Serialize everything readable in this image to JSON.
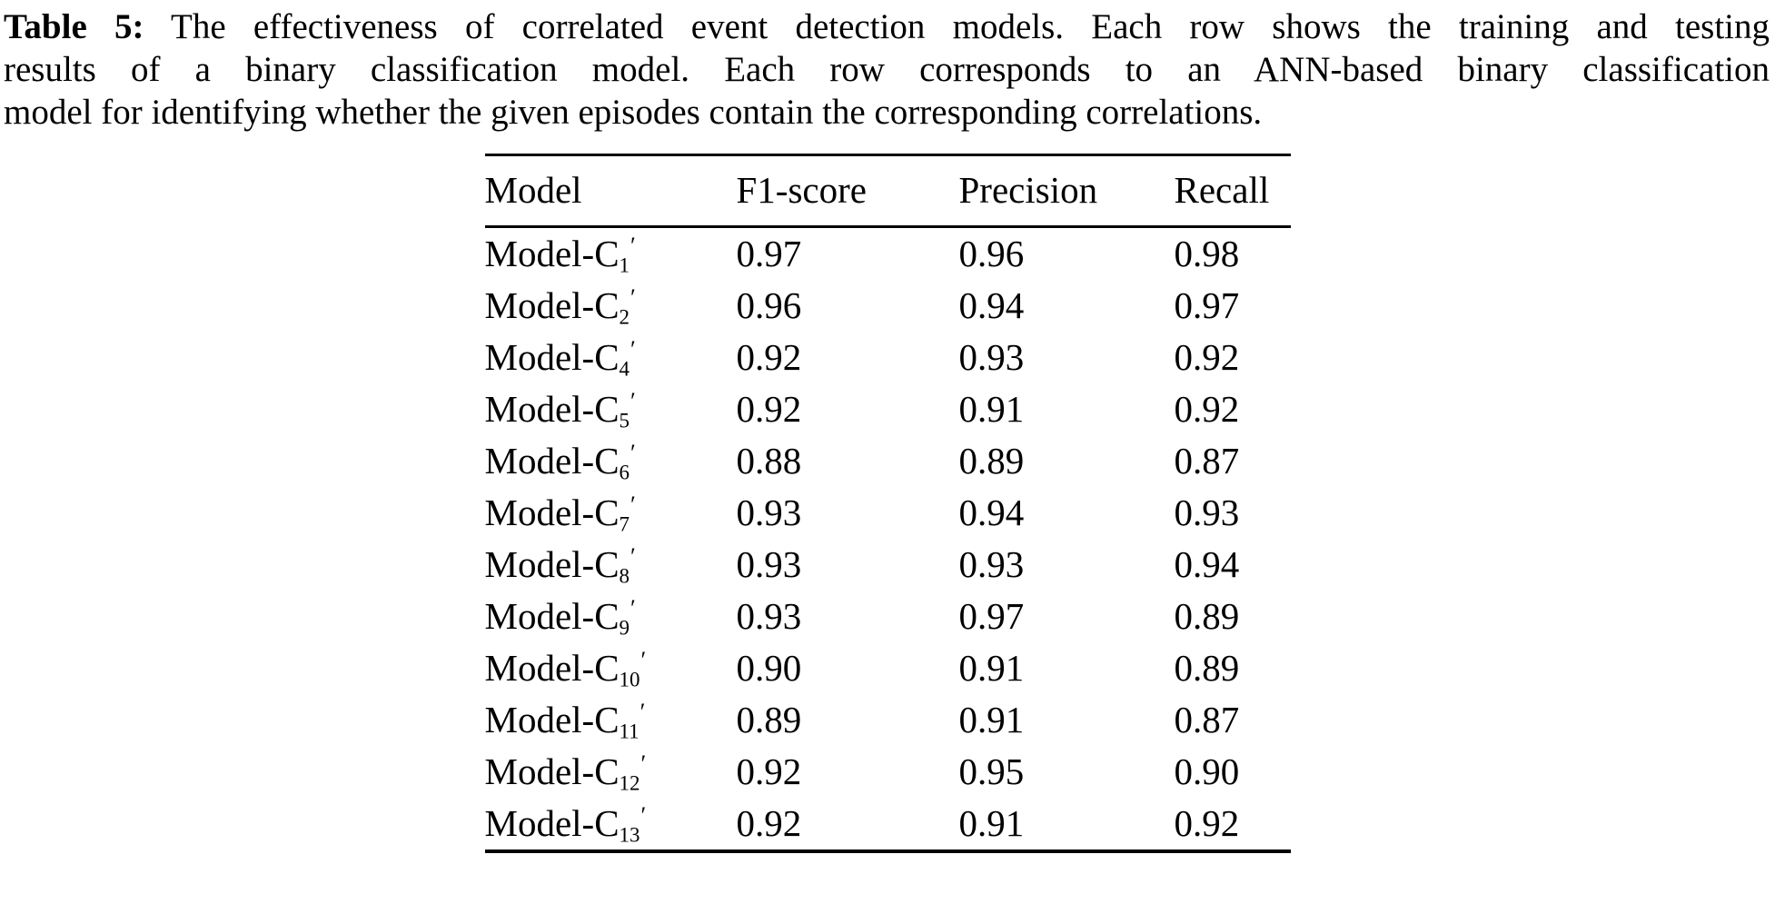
{
  "caption": {
    "label": "Table 5:",
    "lines": [
      "The effectiveness of correlated event detection models. Each row shows the training and testing",
      "results of a binary classification model. Each row corresponds to an ANN-based binary classification",
      "model for identifying whether the given episodes contain the corresponding correlations."
    ]
  },
  "table": {
    "headers": [
      "Model",
      "F1-score",
      "Precision",
      "Recall"
    ],
    "model_prefix": "Model-C",
    "prime_glyph": "′",
    "rows": [
      {
        "sub": "1",
        "f1": "0.97",
        "precision": "0.96",
        "recall": "0.98"
      },
      {
        "sub": "2",
        "f1": "0.96",
        "precision": "0.94",
        "recall": "0.97"
      },
      {
        "sub": "4",
        "f1": "0.92",
        "precision": "0.93",
        "recall": "0.92"
      },
      {
        "sub": "5",
        "f1": "0.92",
        "precision": "0.91",
        "recall": "0.92"
      },
      {
        "sub": "6",
        "f1": "0.88",
        "precision": "0.89",
        "recall": "0.87"
      },
      {
        "sub": "7",
        "f1": "0.93",
        "precision": "0.94",
        "recall": "0.93"
      },
      {
        "sub": "8",
        "f1": "0.93",
        "precision": "0.93",
        "recall": "0.94"
      },
      {
        "sub": "9",
        "f1": "0.93",
        "precision": "0.97",
        "recall": "0.89"
      },
      {
        "sub": "10",
        "f1": "0.90",
        "precision": "0.91",
        "recall": "0.89"
      },
      {
        "sub": "11",
        "f1": "0.89",
        "precision": "0.91",
        "recall": "0.87"
      },
      {
        "sub": "12",
        "f1": "0.92",
        "precision": "0.95",
        "recall": "0.90"
      },
      {
        "sub": "13",
        "f1": "0.92",
        "precision": "0.91",
        "recall": "0.92"
      }
    ]
  }
}
